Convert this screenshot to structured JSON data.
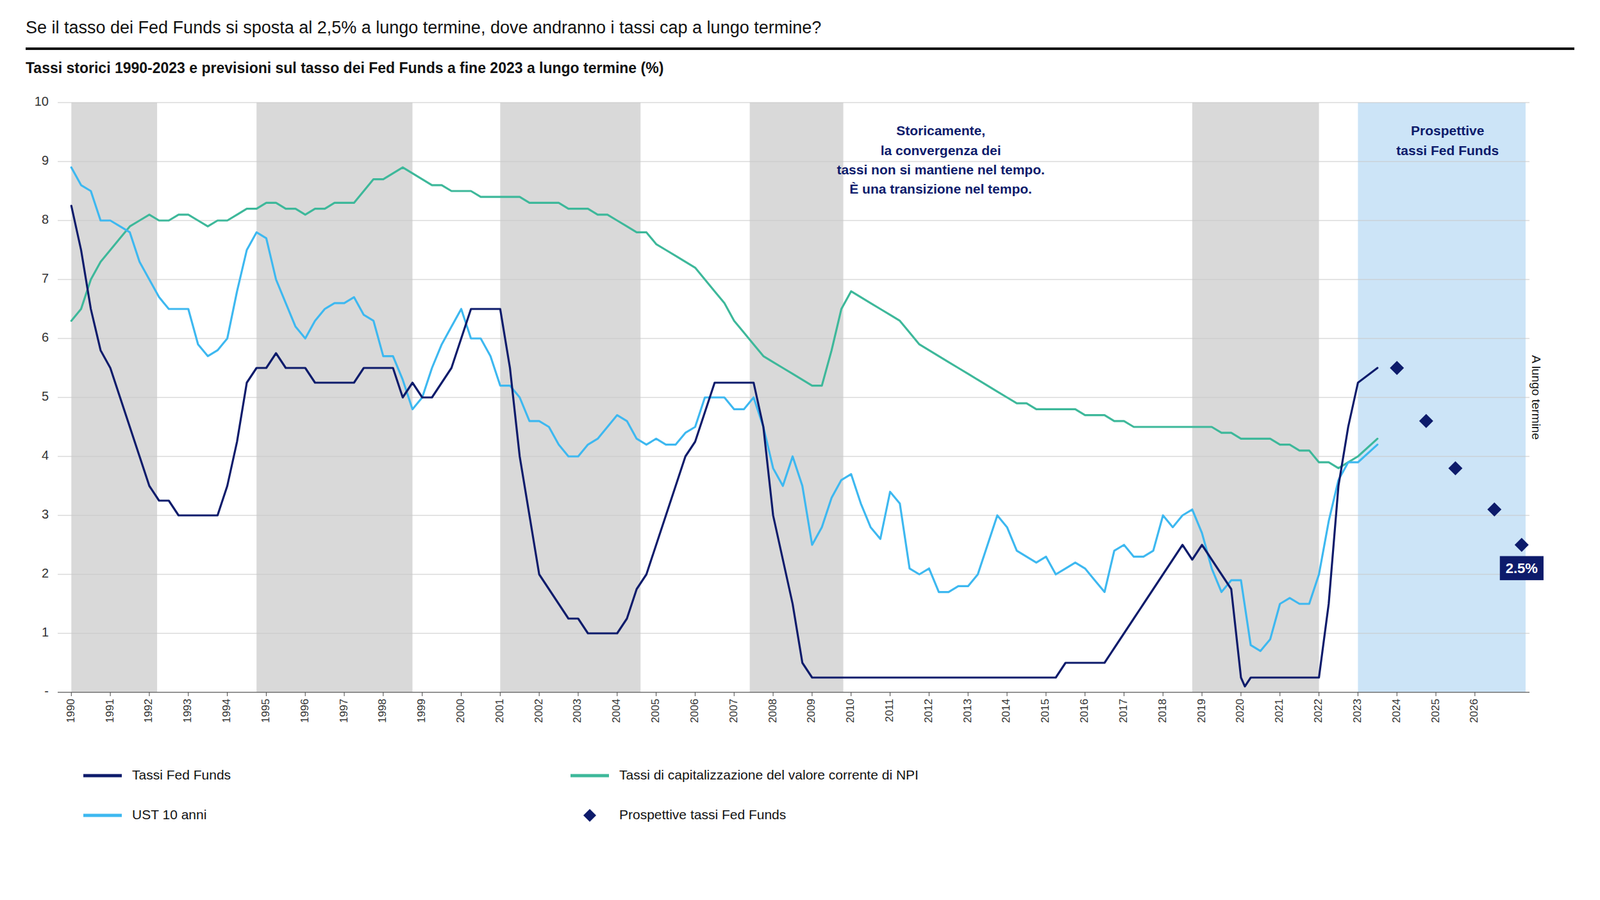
{
  "chart_data": {
    "type": "line",
    "title": "Se il tasso dei Fed Funds si sposta al 2,5% a lungo termine, dove andranno i tassi cap a lungo termine?",
    "subtitle": "Tassi storici 1990-2023 e previsioni sul tasso dei Fed Funds a fine 2023 a lungo termine (%)",
    "xlim": [
      1989.65,
      2027.4
    ],
    "xticks": [
      1990,
      1991,
      1992,
      1993,
      1994,
      1995,
      1996,
      1997,
      1998,
      1999,
      2000,
      2001,
      2002,
      2003,
      2004,
      2005,
      2006,
      2007,
      2008,
      2009,
      2010,
      2011,
      2012,
      2013,
      2014,
      2015,
      2016,
      2017,
      2018,
      2019,
      2020,
      2021,
      2022,
      2023,
      2024,
      2025,
      2026
    ],
    "ylim": [
      0,
      10
    ],
    "yticks": [
      {
        "value": 0,
        "label": "-"
      },
      1,
      2,
      3,
      4,
      5,
      6,
      7,
      8,
      9,
      10
    ],
    "grid": true,
    "legend": "bottom",
    "bands": [
      {
        "from": 1990.0,
        "to": 1992.2,
        "color": "#d9d9d9"
      },
      {
        "from": 1994.75,
        "to": 1998.75,
        "color": "#d9d9d9"
      },
      {
        "from": 2001.0,
        "to": 2004.6,
        "color": "#d9d9d9"
      },
      {
        "from": 2007.4,
        "to": 2009.8,
        "color": "#d9d9d9"
      },
      {
        "from": 2018.75,
        "to": 2022.0,
        "color": "#d9d9d9"
      },
      {
        "from": 2023.0,
        "to": 2027.3,
        "color": "#cce4f7",
        "label": "A lungo termine"
      }
    ],
    "annotations": [
      {
        "text": "Storicamente,\nla convergenza dei\ntassi non si mantiene nel tempo.\nÈ una transizione nel tempo.",
        "x": 2012.3,
        "y": 9.65,
        "color": "#0d1b6b"
      },
      {
        "text": "Prospettive\ntassi Fed Funds",
        "x": 2025.3,
        "y": 9.65,
        "color": "#0d1b6b"
      }
    ],
    "series": [
      {
        "name": "Tassi Fed Funds",
        "type": "line",
        "color": "#0d1b6b",
        "x": [
          1990.0,
          1990.25,
          1990.5,
          1990.75,
          1991.0,
          1991.25,
          1991.5,
          1991.75,
          1992.0,
          1992.25,
          1992.5,
          1992.75,
          1993.0,
          1993.25,
          1993.5,
          1993.75,
          1994.0,
          1994.25,
          1994.5,
          1994.75,
          1995.0,
          1995.25,
          1995.5,
          1995.75,
          1996.0,
          1996.25,
          1996.5,
          1996.75,
          1997.0,
          1997.25,
          1997.5,
          1997.75,
          1998.0,
          1998.25,
          1998.5,
          1998.75,
          1999.0,
          1999.25,
          1999.5,
          1999.75,
          2000.0,
          2000.25,
          2000.5,
          2000.75,
          2001.0,
          2001.25,
          2001.5,
          2001.75,
          2002.0,
          2002.25,
          2002.5,
          2002.75,
          2003.0,
          2003.25,
          2003.5,
          2003.75,
          2004.0,
          2004.25,
          2004.5,
          2004.75,
          2005.0,
          2005.25,
          2005.5,
          2005.75,
          2006.0,
          2006.25,
          2006.5,
          2006.75,
          2007.0,
          2007.25,
          2007.5,
          2007.75,
          2008.0,
          2008.25,
          2008.5,
          2008.75,
          2009.0,
          2009.25,
          2009.5,
          2009.75,
          2010.0,
          2010.25,
          2010.5,
          2010.75,
          2011.0,
          2011.25,
          2011.5,
          2011.75,
          2012.0,
          2012.25,
          2012.5,
          2012.75,
          2013.0,
          2013.25,
          2013.5,
          2013.75,
          2014.0,
          2014.25,
          2014.5,
          2014.75,
          2015.0,
          2015.25,
          2015.5,
          2015.75,
          2016.0,
          2016.25,
          2016.5,
          2016.75,
          2017.0,
          2017.25,
          2017.5,
          2017.75,
          2018.0,
          2018.25,
          2018.5,
          2018.75,
          2019.0,
          2019.25,
          2019.5,
          2019.75,
          2020.0,
          2020.1,
          2020.25,
          2020.5,
          2020.75,
          2021.0,
          2021.25,
          2021.5,
          2021.75,
          2022.0,
          2022.25,
          2022.5,
          2022.75,
          2023.0,
          2023.5
        ],
        "values": [
          8.25,
          7.5,
          6.5,
          5.8,
          5.5,
          5.0,
          4.5,
          4.0,
          3.5,
          3.25,
          3.25,
          3.0,
          3.0,
          3.0,
          3.0,
          3.0,
          3.5,
          4.25,
          5.25,
          5.5,
          5.5,
          5.75,
          5.5,
          5.5,
          5.5,
          5.25,
          5.25,
          5.25,
          5.25,
          5.25,
          5.5,
          5.5,
          5.5,
          5.5,
          5.0,
          5.25,
          5.0,
          5.0,
          5.25,
          5.5,
          6.0,
          6.5,
          6.5,
          6.5,
          6.5,
          5.5,
          4.0,
          3.0,
          2.0,
          1.75,
          1.5,
          1.25,
          1.25,
          1.0,
          1.0,
          1.0,
          1.0,
          1.25,
          1.75,
          2.0,
          2.5,
          3.0,
          3.5,
          4.0,
          4.25,
          4.75,
          5.25,
          5.25,
          5.25,
          5.25,
          5.25,
          4.5,
          3.0,
          2.25,
          1.5,
          0.5,
          0.25,
          0.25,
          0.25,
          0.25,
          0.25,
          0.25,
          0.25,
          0.25,
          0.25,
          0.25,
          0.25,
          0.25,
          0.25,
          0.25,
          0.25,
          0.25,
          0.25,
          0.25,
          0.25,
          0.25,
          0.25,
          0.25,
          0.25,
          0.25,
          0.25,
          0.25,
          0.5,
          0.5,
          0.5,
          0.5,
          0.5,
          0.75,
          1.0,
          1.25,
          1.5,
          1.75,
          2.0,
          2.25,
          2.5,
          2.25,
          2.5,
          2.25,
          2.0,
          1.75,
          0.25,
          0.1,
          0.25,
          0.25,
          0.25,
          0.25,
          0.25,
          0.25,
          0.25,
          0.25,
          1.5,
          3.5,
          4.5,
          5.25,
          5.5
        ]
      },
      {
        "name": "UST 10 anni",
        "type": "line",
        "color": "#3db8f0",
        "x": [
          1990.0,
          1990.25,
          1990.5,
          1990.75,
          1991.0,
          1991.25,
          1991.5,
          1991.75,
          1992.0,
          1992.25,
          1992.5,
          1992.75,
          1993.0,
          1993.25,
          1993.5,
          1993.75,
          1994.0,
          1994.25,
          1994.5,
          1994.75,
          1995.0,
          1995.25,
          1995.5,
          1995.75,
          1996.0,
          1996.25,
          1996.5,
          1996.75,
          1997.0,
          1997.25,
          1997.5,
          1997.75,
          1998.0,
          1998.25,
          1998.5,
          1998.75,
          1999.0,
          1999.25,
          1999.5,
          1999.75,
          2000.0,
          2000.25,
          2000.5,
          2000.75,
          2001.0,
          2001.25,
          2001.5,
          2001.75,
          2002.0,
          2002.25,
          2002.5,
          2002.75,
          2003.0,
          2003.25,
          2003.5,
          2003.75,
          2004.0,
          2004.25,
          2004.5,
          2004.75,
          2005.0,
          2005.25,
          2005.5,
          2005.75,
          2006.0,
          2006.25,
          2006.5,
          2006.75,
          2007.0,
          2007.25,
          2007.5,
          2007.75,
          2008.0,
          2008.25,
          2008.5,
          2008.75,
          2009.0,
          2009.25,
          2009.5,
          2009.75,
          2010.0,
          2010.25,
          2010.5,
          2010.75,
          2011.0,
          2011.25,
          2011.5,
          2011.75,
          2012.0,
          2012.25,
          2012.5,
          2012.75,
          2013.0,
          2013.25,
          2013.5,
          2013.75,
          2014.0,
          2014.25,
          2014.5,
          2014.75,
          2015.0,
          2015.25,
          2015.5,
          2015.75,
          2016.0,
          2016.25,
          2016.5,
          2016.75,
          2017.0,
          2017.25,
          2017.5,
          2017.75,
          2018.0,
          2018.25,
          2018.5,
          2018.75,
          2019.0,
          2019.25,
          2019.5,
          2019.75,
          2020.0,
          2020.25,
          2020.5,
          2020.75,
          2021.0,
          2021.25,
          2021.5,
          2021.75,
          2022.0,
          2022.25,
          2022.5,
          2022.75,
          2023.0,
          2023.5
        ],
        "values": [
          8.9,
          8.6,
          8.5,
          8.0,
          8.0,
          7.9,
          7.8,
          7.3,
          7.0,
          6.7,
          6.5,
          6.5,
          6.5,
          5.9,
          5.7,
          5.8,
          6.0,
          6.8,
          7.5,
          7.8,
          7.7,
          7.0,
          6.6,
          6.2,
          6.0,
          6.3,
          6.5,
          6.6,
          6.6,
          6.7,
          6.4,
          6.3,
          5.7,
          5.7,
          5.3,
          4.8,
          5.0,
          5.5,
          5.9,
          6.2,
          6.5,
          6.0,
          6.0,
          5.7,
          5.2,
          5.2,
          5.0,
          4.6,
          4.6,
          4.5,
          4.2,
          4.0,
          4.0,
          4.2,
          4.3,
          4.5,
          4.7,
          4.6,
          4.3,
          4.2,
          4.3,
          4.2,
          4.2,
          4.4,
          4.5,
          5.0,
          5.0,
          5.0,
          4.8,
          4.8,
          5.0,
          4.5,
          3.8,
          3.5,
          4.0,
          3.5,
          2.5,
          2.8,
          3.3,
          3.6,
          3.7,
          3.2,
          2.8,
          2.6,
          3.4,
          3.2,
          2.1,
          2.0,
          2.1,
          1.7,
          1.7,
          1.8,
          1.8,
          2.0,
          2.5,
          3.0,
          2.8,
          2.4,
          2.3,
          2.2,
          2.3,
          2.0,
          2.1,
          2.2,
          2.1,
          1.9,
          1.7,
          2.4,
          2.5,
          2.3,
          2.3,
          2.4,
          3.0,
          2.8,
          3.0,
          3.1,
          2.7,
          2.1,
          1.7,
          1.9,
          1.9,
          0.8,
          0.7,
          0.9,
          1.5,
          1.6,
          1.5,
          1.5,
          2.0,
          2.9,
          3.6,
          3.9,
          3.9,
          4.2
        ]
      },
      {
        "name": "Tassi di capitalizzazione del valore corrente di NPI",
        "type": "line",
        "color": "#3db89a",
        "x": [
          1990.0,
          1990.25,
          1990.5,
          1990.75,
          1991.0,
          1991.25,
          1991.5,
          1991.75,
          1992.0,
          1992.25,
          1992.5,
          1992.75,
          1993.0,
          1993.25,
          1993.5,
          1993.75,
          1994.0,
          1994.25,
          1994.5,
          1994.75,
          1995.0,
          1995.25,
          1995.5,
          1995.75,
          1996.0,
          1996.25,
          1996.5,
          1996.75,
          1997.0,
          1997.25,
          1997.5,
          1997.75,
          1998.0,
          1998.25,
          1998.5,
          1998.75,
          1999.0,
          1999.25,
          1999.5,
          1999.75,
          2000.0,
          2000.25,
          2000.5,
          2000.75,
          2001.0,
          2001.25,
          2001.5,
          2001.75,
          2002.0,
          2002.25,
          2002.5,
          2002.75,
          2003.0,
          2003.25,
          2003.5,
          2003.75,
          2004.0,
          2004.25,
          2004.5,
          2004.75,
          2005.0,
          2005.25,
          2005.5,
          2005.75,
          2006.0,
          2006.25,
          2006.5,
          2006.75,
          2007.0,
          2007.25,
          2007.5,
          2007.75,
          2008.0,
          2008.25,
          2008.5,
          2008.75,
          2009.0,
          2009.25,
          2009.5,
          2009.75,
          2010.0,
          2010.25,
          2010.5,
          2010.75,
          2011.0,
          2011.25,
          2011.5,
          2011.75,
          2012.0,
          2012.25,
          2012.5,
          2012.75,
          2013.0,
          2013.25,
          2013.5,
          2013.75,
          2014.0,
          2014.25,
          2014.5,
          2014.75,
          2015.0,
          2015.25,
          2015.5,
          2015.75,
          2016.0,
          2016.25,
          2016.5,
          2016.75,
          2017.0,
          2017.25,
          2017.5,
          2017.75,
          2018.0,
          2018.25,
          2018.5,
          2018.75,
          2019.0,
          2019.25,
          2019.5,
          2019.75,
          2020.0,
          2020.25,
          2020.5,
          2020.75,
          2021.0,
          2021.25,
          2021.5,
          2021.75,
          2022.0,
          2022.25,
          2022.5,
          2022.75,
          2023.0,
          2023.5
        ],
        "values": [
          6.3,
          6.5,
          7.0,
          7.3,
          7.5,
          7.7,
          7.9,
          8.0,
          8.1,
          8.0,
          8.0,
          8.1,
          8.1,
          8.0,
          7.9,
          8.0,
          8.0,
          8.1,
          8.2,
          8.2,
          8.3,
          8.3,
          8.2,
          8.2,
          8.1,
          8.2,
          8.2,
          8.3,
          8.3,
          8.3,
          8.5,
          8.7,
          8.7,
          8.8,
          8.9,
          8.8,
          8.7,
          8.6,
          8.6,
          8.5,
          8.5,
          8.5,
          8.4,
          8.4,
          8.4,
          8.4,
          8.4,
          8.3,
          8.3,
          8.3,
          8.3,
          8.2,
          8.2,
          8.2,
          8.1,
          8.1,
          8.0,
          7.9,
          7.8,
          7.8,
          7.6,
          7.5,
          7.4,
          7.3,
          7.2,
          7.0,
          6.8,
          6.6,
          6.3,
          6.1,
          5.9,
          5.7,
          5.6,
          5.5,
          5.4,
          5.3,
          5.2,
          5.2,
          5.8,
          6.5,
          6.8,
          6.7,
          6.6,
          6.5,
          6.4,
          6.3,
          6.1,
          5.9,
          5.8,
          5.7,
          5.6,
          5.5,
          5.4,
          5.3,
          5.2,
          5.1,
          5.0,
          4.9,
          4.9,
          4.8,
          4.8,
          4.8,
          4.8,
          4.8,
          4.7,
          4.7,
          4.7,
          4.6,
          4.6,
          4.5,
          4.5,
          4.5,
          4.5,
          4.5,
          4.5,
          4.5,
          4.5,
          4.5,
          4.4,
          4.4,
          4.3,
          4.3,
          4.3,
          4.3,
          4.2,
          4.2,
          4.1,
          4.1,
          3.9,
          3.9,
          3.8,
          3.9,
          4.0,
          4.3
        ]
      },
      {
        "name": "Prospettive tassi Fed Funds",
        "type": "scatter",
        "marker": "diamond",
        "color": "#0d1b6b",
        "x": [
          2024.0,
          2024.75,
          2025.5,
          2026.5,
          2027.2
        ],
        "values": [
          5.5,
          4.6,
          3.8,
          3.1,
          2.5
        ],
        "data_labels": true,
        "value_labels": [
          null,
          null,
          null,
          null,
          "2.5%"
        ]
      }
    ]
  }
}
